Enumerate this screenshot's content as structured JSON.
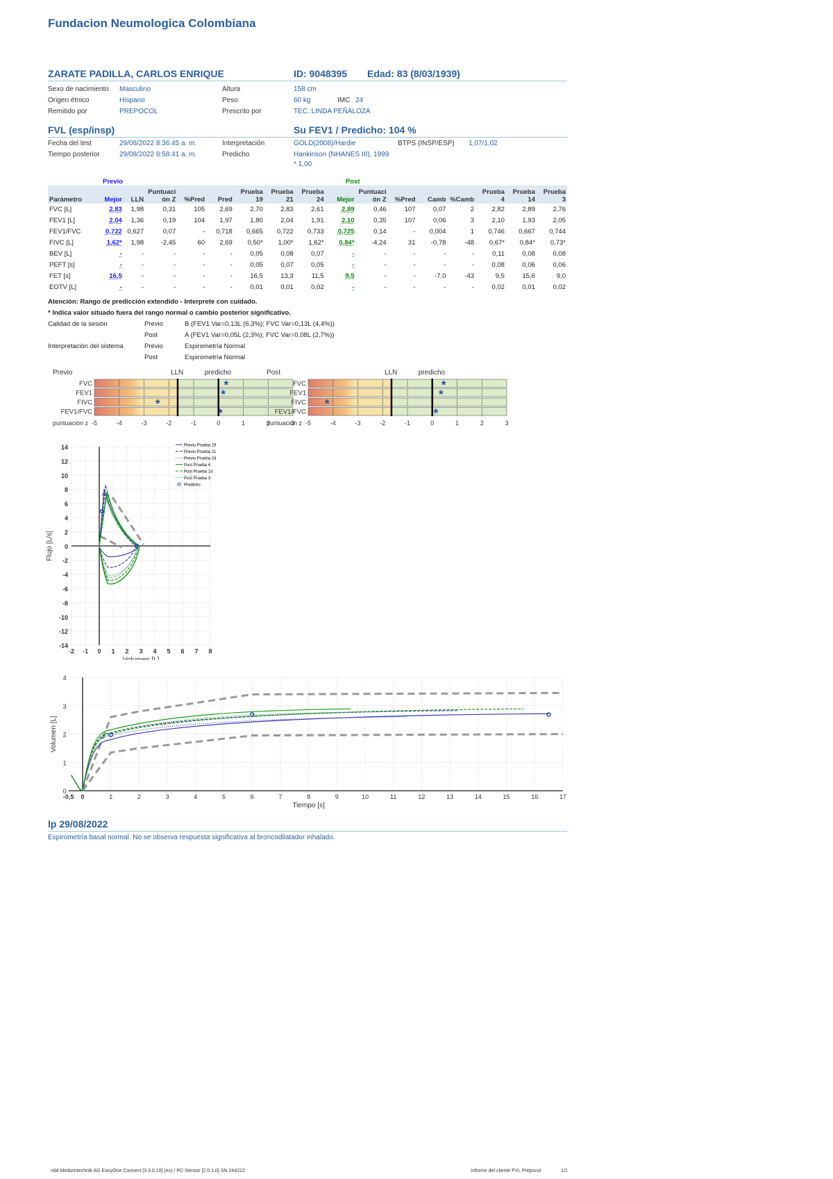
{
  "header": {
    "title": "Fundacion Neumologica Colombiana"
  },
  "patient": {
    "name": "ZARATE PADILLA, CARLOS ENRIQUE",
    "id": "ID: 9048395",
    "age": "Edad: 83 (8/03/1939)",
    "sex_label": "Sexo de nacimiento",
    "sex": "Masculino",
    "ethnic_label": "Origen étnico",
    "ethnic": "Hispano",
    "referred_label": "Remitido por",
    "referred": "PREPOCOL",
    "height_label": "Altura",
    "height": "158 cm",
    "weight_label": "Peso",
    "weight": "60 kg",
    "bmi_label": "IMC",
    "bmi": "24",
    "prescribed_label": "Prescrito por",
    "prescribed": "TEC. LINDA PEÑALOZA"
  },
  "test": {
    "title": "FVL (esp/insp)",
    "fev1_pred": "Su FEV1 / Predicho: 104 %",
    "date_label": "Fecha del test",
    "date": "29/08/2022 8:36:45 a. m.",
    "post_label": "Tiempo posterior",
    "post": "29/08/2022 8:58:41 a. m.",
    "interp_label": "Interpretación",
    "interp": "GOLD(2008)/Hardie",
    "pred_label": "Predicho",
    "pred": "Hankinson (NHANES III), 1999",
    "pred2": "* 1,00",
    "btps_label": "BTPS (INSP/ESP)",
    "btps": "1,07/1,02"
  },
  "table": {
    "previo": "Previo",
    "post": "Post",
    "headers": [
      "Parámetro",
      "Mejor",
      "LLN",
      "Puntuaci ón Z",
      "%Pred",
      "Pred",
      "Prueba 19",
      "Prueba 21",
      "Prueba 24",
      "Mejor",
      "Puntuaci ón Z",
      "%Pred",
      "Camb",
      "%Camb",
      "Prueba 4",
      "Prueba 14",
      "Prueba 3"
    ],
    "rows": [
      [
        "FVC [L]",
        "2,83",
        "1,98",
        "0,31",
        "105",
        "2,69",
        "2,70",
        "2,83",
        "2,61",
        "2,89",
        "0,46",
        "107",
        "0,07",
        "2",
        "2,82",
        "2,89",
        "2,76"
      ],
      [
        "FEV1 [L]",
        "2,04",
        "1,36",
        "0,19",
        "104",
        "1,97",
        "1,80",
        "2,04",
        "1,91",
        "2,10",
        "0,35",
        "107",
        "0,06",
        "3",
        "2,10",
        "1,93",
        "2,05"
      ],
      [
        "FEV1/FVC",
        "0,722",
        "0,627",
        "0,07",
        "-",
        "0,718",
        "0,665",
        "0,722",
        "0,733",
        "0,725",
        "0,14",
        "-",
        "0,004",
        "1",
        "0,746",
        "0,667",
        "0,744"
      ],
      [
        "FIVC [L]",
        "1,62*",
        "1,98",
        "-2,45",
        "60",
        "2,69",
        "0,50*",
        "1,00*",
        "1,62*",
        "0,84*",
        "-4,24",
        "31",
        "-0,78",
        "-48",
        "0,67*",
        "0,84*",
        "0,73*"
      ],
      [
        "BEV [L]",
        "-",
        "-",
        "-",
        "-",
        "-",
        "0,05",
        "0,08",
        "0,07",
        "-",
        "-",
        "-",
        "-",
        "-",
        "0,11",
        "0,08",
        "0,08"
      ],
      [
        "PEFT [s]",
        "-",
        "-",
        "-",
        "-",
        "-",
        "0,05",
        "0,07",
        "0,05",
        "-",
        "-",
        "-",
        "-",
        "-",
        "0,08",
        "0,06",
        "0,06"
      ],
      [
        "FET [s]",
        "16,5",
        "-",
        "-",
        "-",
        "-",
        "16,5",
        "13,3",
        "11,5",
        "9,5",
        "-",
        "-",
        "-7,0",
        "-43",
        "9,5",
        "15,6",
        "9,0"
      ],
      [
        "EOTV [L]",
        "-",
        "-",
        "-",
        "-",
        "-",
        "0,01",
        "0,01",
        "0,02",
        "-",
        "-",
        "-",
        "-",
        "-",
        "0,02",
        "0,01",
        "0,02"
      ]
    ]
  },
  "notes": {
    "n1": "Atención: Rango de predicción extendido - Interprete con cuidado.",
    "n2": "* Indica valor situado fuera del rango normal o cambio posterior significativo.",
    "quality_label": "Calidad de la sesión",
    "q_prev_label": "Previo",
    "q_prev": "B (FEV1 Var=0,13L (6,3%); FVC Var=0,13L (4,4%))",
    "q_post_label": "Post",
    "q_post": "A (FEV1 Var=0,05L (2,3%); FVC Var=0,08L (2,7%))",
    "sys_label": "Interpretación del sistema",
    "s_prev_label": "Previo",
    "s_prev": "Espirometría Normal",
    "s_post_label": "Post",
    "s_post": "Espirometría Normal"
  },
  "zscore": {
    "lln": "LLN",
    "pred": "predicho",
    "axis_label": "puntuación z",
    "ticks": [
      "-5",
      "-4",
      "-3",
      "-2",
      "-1",
      "0",
      "1",
      "2",
      "3"
    ],
    "rows": [
      "FVC",
      "FEV1",
      "FIVC",
      "FEV1/FVC"
    ],
    "previo": {
      "title": "Previo",
      "values": [
        0.31,
        0.19,
        -2.45,
        0.07
      ]
    },
    "post": {
      "title": "Post",
      "values": [
        0.46,
        0.35,
        -4.24,
        0.14
      ]
    }
  },
  "flow_chart": {
    "ylabel": "Flujo [L/s]",
    "xlabel": "Volumen [L]",
    "yticks": [
      "14",
      "12",
      "10",
      "8",
      "6",
      "4",
      "2",
      "0",
      "-2",
      "-4",
      "-6",
      "-8",
      "-10",
      "-12",
      "-14"
    ],
    "xticks": [
      "-2",
      "-1",
      "0",
      "1",
      "2",
      "3",
      "4",
      "5",
      "6",
      "7",
      "8"
    ],
    "legend": [
      "Previo Prueba 19",
      "Previo Prueba 21",
      "Previo Prueba 24",
      "Post Prueba 4",
      "Post Prueba 14",
      "Post Prueba 3",
      "Predicho"
    ]
  },
  "vt_chart": {
    "ylabel": "Volumen [L]",
    "xlabel": "Tiempo [s]",
    "yticks": [
      "4",
      "3",
      "2",
      "1",
      "0"
    ],
    "xticks": [
      "-0,5",
      "0",
      "1",
      "2",
      "3",
      "4",
      "5",
      "6",
      "7",
      "8",
      "9",
      "10",
      "11",
      "12",
      "13",
      "14",
      "15",
      "16",
      "17"
    ]
  },
  "comment": {
    "title": "lp 29/08/2022",
    "text": "Espirometría basal normal. No se observa respuesta significativa al broncodilatador inhalado."
  },
  "footer": {
    "left": "ndd Medizintechnik AG   EasyOne Connect [3.9.0.10] (es) / PC-Sensor [2.0.1.0]   SN 244222",
    "right": "Informe del cliente FVL Prepocol",
    "page": "1/1"
  },
  "colors": {
    "accent": "#2a5f9e",
    "previo": "#1a1aff",
    "post": "#0a8a0a",
    "rule": "#9fc9d8"
  }
}
